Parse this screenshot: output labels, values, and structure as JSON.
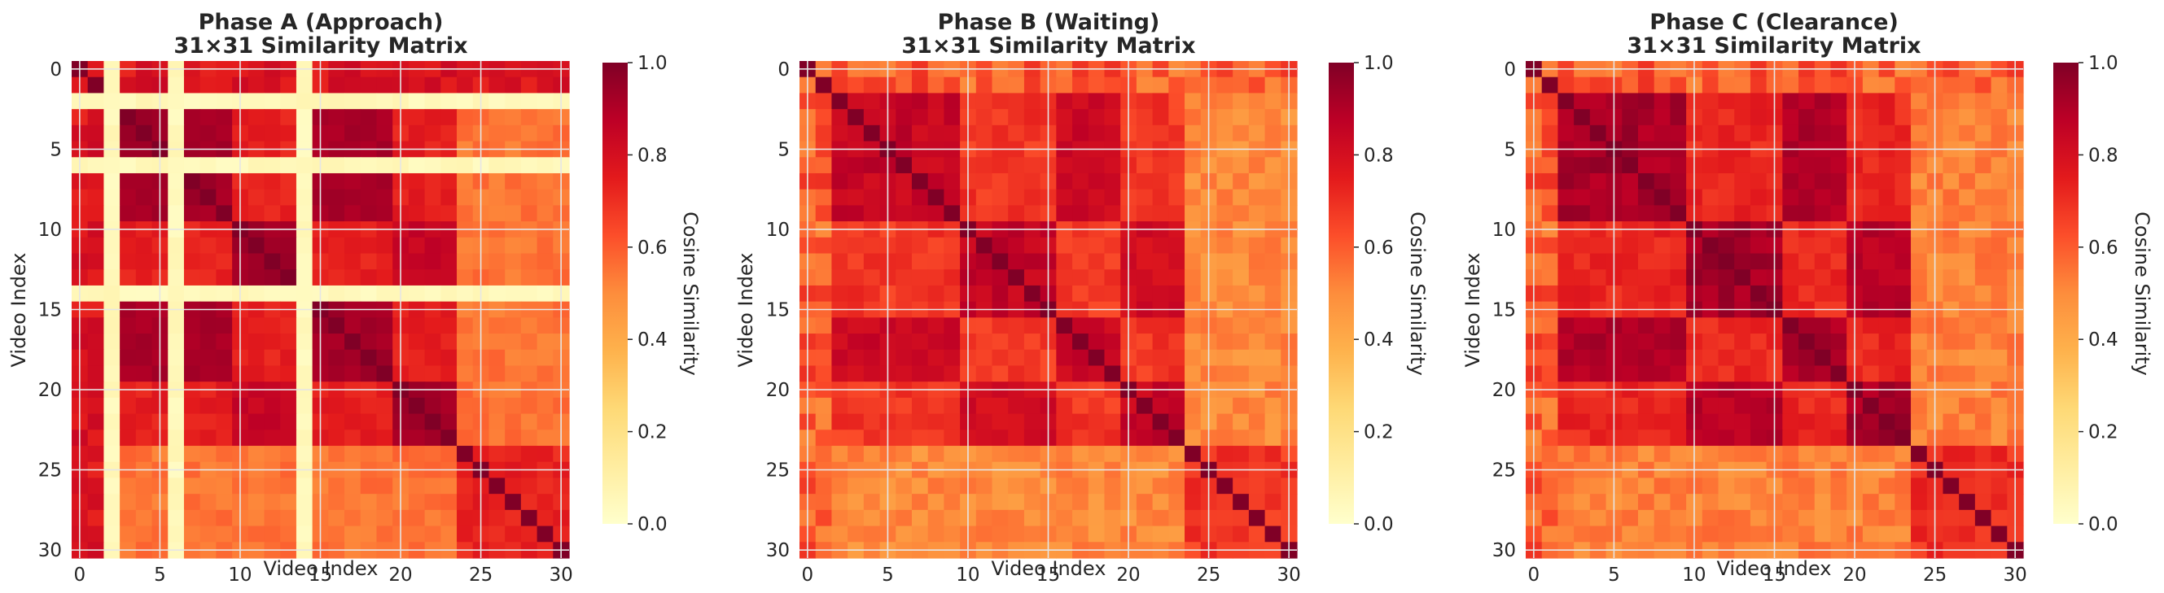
{
  "chart_data": [
    {
      "type": "heatmap",
      "phase": "A",
      "title_line1": "Phase A (Approach)",
      "title_line2": "31×31 Similarity Matrix",
      "xlabel": "Video Index",
      "ylabel": "Video Index",
      "x_ticks": [
        0,
        5,
        10,
        15,
        20,
        25,
        30
      ],
      "y_ticks": [
        0,
        5,
        10,
        15,
        20,
        25,
        30
      ],
      "n": 31,
      "colorbar_label": "Cosine Similarity",
      "colorbar_ticks": [
        "0.0",
        "0.2",
        "0.4",
        "0.6",
        "0.8",
        "1.0"
      ],
      "vmin": 0.0,
      "vmax": 1.0,
      "groups": [
        [
          2,
          3,
          4,
          5,
          7,
          8,
          9
        ],
        [
          10,
          11,
          12,
          13
        ],
        [
          15,
          16,
          17,
          18,
          19
        ],
        [
          20,
          21,
          22,
          23
        ],
        [
          24,
          25,
          26,
          27,
          28,
          29,
          30
        ]
      ],
      "special_rows": [
        0,
        1
      ],
      "blank_indices": [
        2,
        6,
        14
      ],
      "blank_value": 0.05,
      "values_note": "approximate similarity levels read from the color scale",
      "levels": {
        "diag": 1.0,
        "group_a_a": 0.93,
        "group_b_b": 0.93,
        "cross_ab": 0.75,
        "cross_ac": 0.75,
        "cross_ad": 0.72,
        "tail": 0.55,
        "tail_block": 0.72
      }
    },
    {
      "type": "heatmap",
      "phase": "B",
      "title_line1": "Phase B (Waiting)",
      "title_line2": "31×31 Similarity Matrix",
      "xlabel": "Video Index",
      "ylabel": "Video Index",
      "x_ticks": [
        0,
        5,
        10,
        15,
        20,
        25,
        30
      ],
      "y_ticks": [
        0,
        5,
        10,
        15,
        20,
        25,
        30
      ],
      "n": 31,
      "colorbar_label": "Cosine Similarity",
      "colorbar_ticks": [
        "0.0",
        "0.2",
        "0.4",
        "0.6",
        "0.8",
        "1.0"
      ],
      "vmin": 0.0,
      "vmax": 1.0,
      "blank_indices": [],
      "values_note": "approximate similarity levels read from the color scale",
      "levels": {
        "diag": 1.0,
        "within": 0.85,
        "cross": 0.68,
        "tail": 0.5,
        "tail_block": 0.68
      }
    },
    {
      "type": "heatmap",
      "phase": "C",
      "title_line1": "Phase C (Clearance)",
      "title_line2": "31×31 Similarity Matrix",
      "xlabel": "Video Index",
      "ylabel": "Video Index",
      "x_ticks": [
        0,
        5,
        10,
        15,
        20,
        25,
        30
      ],
      "y_ticks": [
        0,
        5,
        10,
        15,
        20,
        25,
        30
      ],
      "n": 31,
      "colorbar_label": "Cosine Similarity",
      "colorbar_ticks": [
        "0.0",
        "0.2",
        "0.4",
        "0.6",
        "0.8",
        "1.0"
      ],
      "vmin": 0.0,
      "vmax": 1.0,
      "blank_indices": [],
      "values_note": "approximate similarity levels read from the color scale",
      "levels": {
        "diag": 1.0,
        "within": 0.92,
        "cross": 0.72,
        "tail": 0.52,
        "tail_block": 0.7
      }
    }
  ],
  "colors": {
    "cmap": "YlOrRd",
    "stops": [
      "#ffffcc",
      "#ffeda0",
      "#fed976",
      "#feb24c",
      "#fd8d3c",
      "#fc4e2a",
      "#e31a1c",
      "#bd0026",
      "#800026"
    ],
    "grid": "#e6e6e6",
    "text": "#262626"
  }
}
